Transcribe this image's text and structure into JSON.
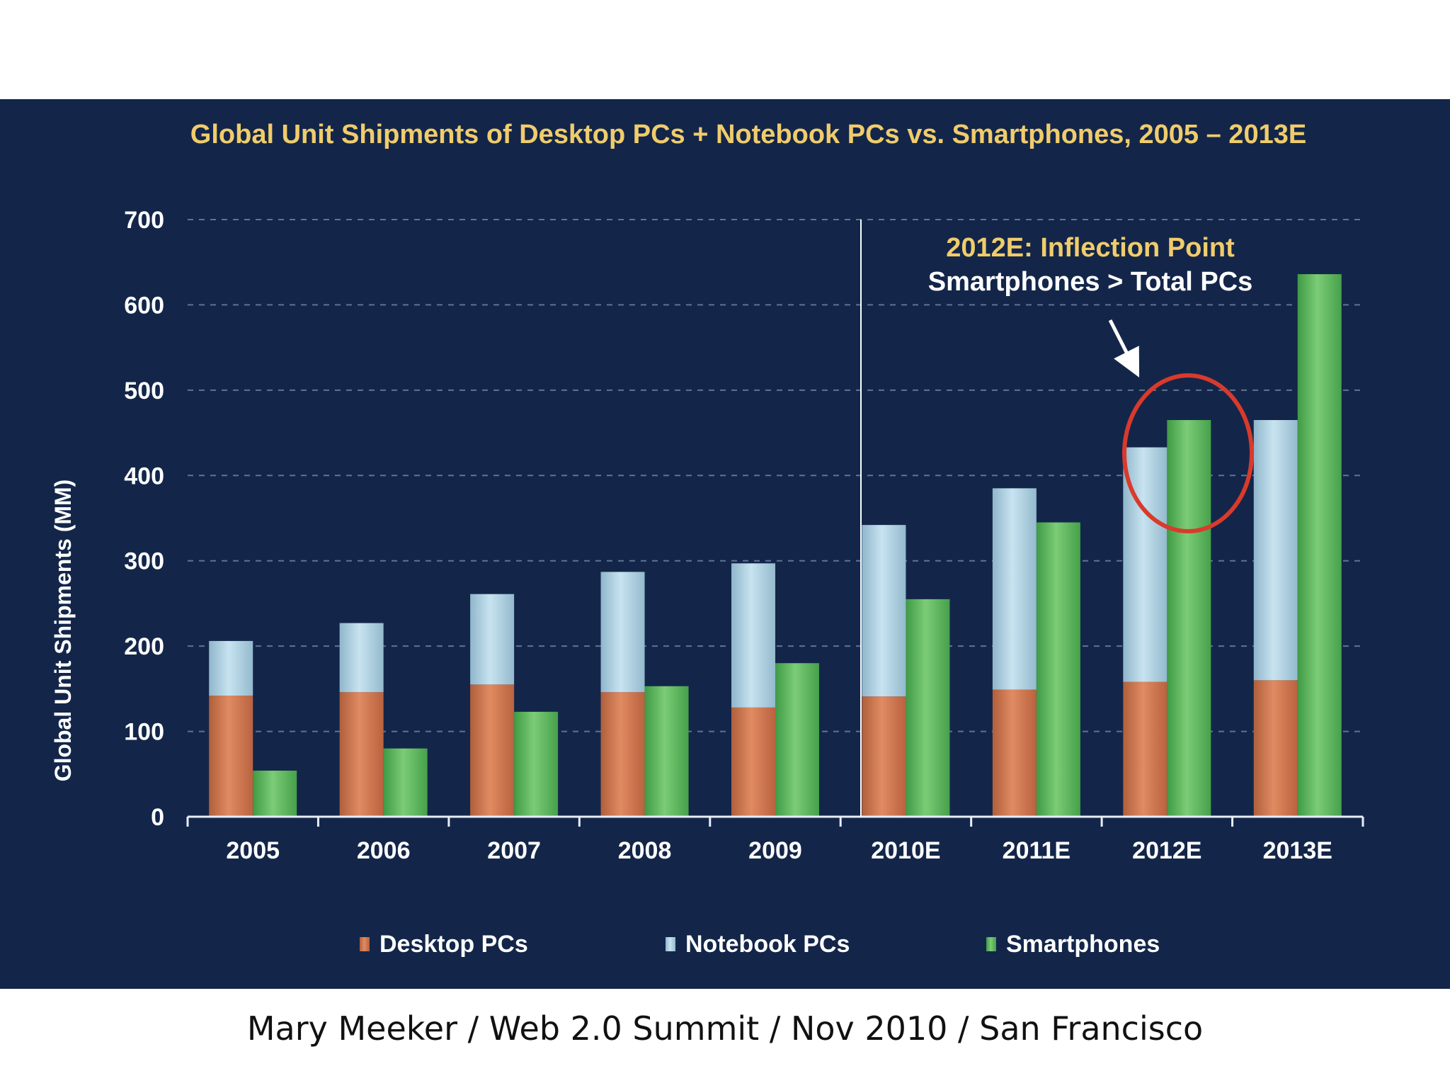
{
  "footer": {
    "caption": "Mary Meeker / Web 2.0 Summit / Nov 2010 / San Francisco"
  },
  "colors": {
    "background": "#13264a",
    "desktop": "#c9714b",
    "notebook": "#a8cde0",
    "smartphone": "#5fb660",
    "title": "#f0cc6b",
    "circle": "#d93a2b"
  },
  "chart_data": {
    "type": "bar",
    "title": "Global Unit Shipments of Desktop PCs + Notebook PCs vs. Smartphones, 2005 – 2013E",
    "ylabel": "Global Unit Shipments (MM)",
    "xlabel": "",
    "ylim": [
      0,
      700
    ],
    "yticks": [
      "0",
      "100",
      "200",
      "300",
      "400",
      "500",
      "600",
      "700"
    ],
    "grid": true,
    "legend_position": "bottom",
    "categories": [
      "2005",
      "2006",
      "2007",
      "2008",
      "2009",
      "2010E",
      "2011E",
      "2012E",
      "2013E"
    ],
    "series": [
      {
        "name": "Desktop PCs",
        "stack": "pcs",
        "values": [
          142,
          146,
          155,
          146,
          128,
          141,
          149,
          158,
          160
        ]
      },
      {
        "name": "Notebook PCs",
        "stack": "pcs",
        "values": [
          64,
          81,
          106,
          141,
          169,
          201,
          236,
          275,
          305
        ]
      },
      {
        "name": "Smartphones",
        "stack": "smartphones",
        "values": [
          54,
          80,
          123,
          153,
          180,
          255,
          345,
          465,
          636
        ]
      }
    ],
    "annotation": {
      "line1": "2012E: Inflection Point",
      "line2": "Smartphones > Total PCs",
      "target_category": "2012E"
    }
  }
}
